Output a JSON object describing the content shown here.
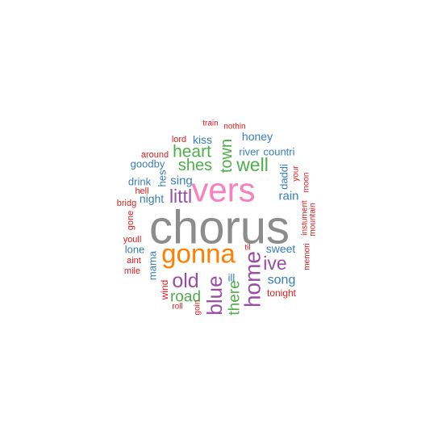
{
  "palette": {
    "red": "#E41A1C",
    "blue": "#377EB8",
    "green": "#4DAF4A",
    "purple": "#984EA3",
    "orange": "#FF7F00",
    "pink": "#F781BF",
    "gray": "#8C8C8C"
  },
  "words": [
    {
      "text": "chorus",
      "color": "gray",
      "rotate": 0
    },
    {
      "text": "vers",
      "color": "pink",
      "rotate": 0
    },
    {
      "text": "gonna",
      "color": "orange",
      "rotate": 0
    },
    {
      "text": "home",
      "color": "purple",
      "rotate": -90
    },
    {
      "text": "blue",
      "color": "purple",
      "rotate": -90
    },
    {
      "text": "old",
      "color": "purple",
      "rotate": 0
    },
    {
      "text": "well",
      "color": "green",
      "rotate": 0
    },
    {
      "text": "ive",
      "color": "purple",
      "rotate": 0
    },
    {
      "text": "littl",
      "color": "purple",
      "rotate": 0
    },
    {
      "text": "heart",
      "color": "green",
      "rotate": 0
    },
    {
      "text": "shes",
      "color": "green",
      "rotate": 0
    },
    {
      "text": "town",
      "color": "green",
      "rotate": -90
    },
    {
      "text": "road",
      "color": "green",
      "rotate": 0
    },
    {
      "text": "there",
      "color": "green",
      "rotate": -90
    },
    {
      "text": "song",
      "color": "blue",
      "rotate": 0
    },
    {
      "text": "rain",
      "color": "blue",
      "rotate": 0
    },
    {
      "text": "sweet",
      "color": "blue",
      "rotate": 0
    },
    {
      "text": "sing",
      "color": "blue",
      "rotate": 0
    },
    {
      "text": "night",
      "color": "blue",
      "rotate": 0
    },
    {
      "text": "kiss",
      "color": "blue",
      "rotate": 0
    },
    {
      "text": "honey",
      "color": "blue",
      "rotate": 0
    },
    {
      "text": "river",
      "color": "blue",
      "rotate": 0
    },
    {
      "text": "countri",
      "color": "blue",
      "rotate": 0
    },
    {
      "text": "goodby",
      "color": "blue",
      "rotate": 0
    },
    {
      "text": "drink",
      "color": "blue",
      "rotate": 0
    },
    {
      "text": "hes",
      "color": "blue",
      "rotate": -90
    },
    {
      "text": "mama",
      "color": "blue",
      "rotate": -90
    },
    {
      "text": "lone",
      "color": "blue",
      "rotate": 0
    },
    {
      "text": "daddi",
      "color": "blue",
      "rotate": -90
    },
    {
      "text": "ill",
      "color": "blue",
      "rotate": 0
    },
    {
      "text": "wind",
      "color": "red",
      "rotate": -90
    },
    {
      "text": "tonight",
      "color": "red",
      "rotate": 0
    },
    {
      "text": "youll",
      "color": "red",
      "rotate": 0
    },
    {
      "text": "aint",
      "color": "red",
      "rotate": 0
    },
    {
      "text": "mile",
      "color": "red",
      "rotate": 0
    },
    {
      "text": "hell",
      "color": "red",
      "rotate": 0
    },
    {
      "text": "bridg",
      "color": "red",
      "rotate": 0
    },
    {
      "text": "gone",
      "color": "red",
      "rotate": -90
    },
    {
      "text": "around",
      "color": "red",
      "rotate": 0
    },
    {
      "text": "lord",
      "color": "red",
      "rotate": 0
    },
    {
      "text": "train",
      "color": "red",
      "rotate": 0
    },
    {
      "text": "nothin",
      "color": "red",
      "rotate": 0
    },
    {
      "text": "your",
      "color": "red",
      "rotate": -90
    },
    {
      "text": "moon",
      "color": "red",
      "rotate": -90
    },
    {
      "text": "instument",
      "color": "red",
      "rotate": -90
    },
    {
      "text": "mountain",
      "color": "red",
      "rotate": -90
    },
    {
      "text": "memori",
      "color": "red",
      "rotate": -90
    },
    {
      "text": "til",
      "color": "red",
      "rotate": 0
    },
    {
      "text": "roll",
      "color": "red",
      "rotate": 0
    },
    {
      "text": "goin",
      "color": "red",
      "rotate": -90
    }
  ]
}
